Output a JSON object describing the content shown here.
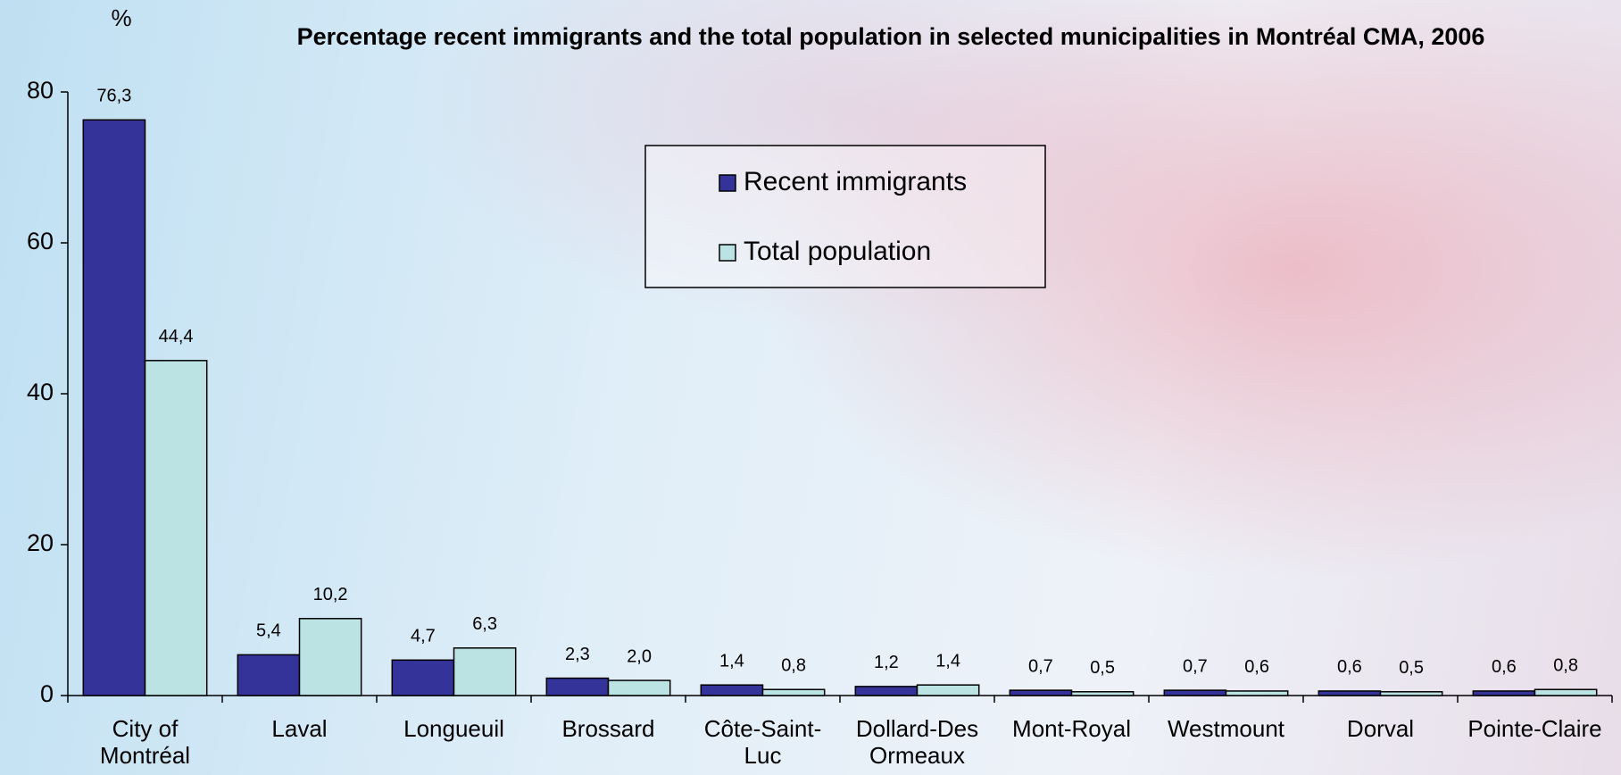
{
  "chart_data": {
    "type": "grouped-bar",
    "title": "Percentage recent immigrants and the total population in selected municipalities in Montréal CMA, 2006",
    "y_label": "%",
    "categories": [
      "City of Montréal",
      "Laval",
      "Longueuil",
      "Brossard",
      "Côte-Saint-Luc",
      "Dollard-Des Ormeaux",
      "Mont-Royal",
      "Westmount",
      "Dorval",
      "Pointe-Claire"
    ],
    "series": [
      {
        "name": "Recent immigrants",
        "color": "#333399",
        "values": [
          76.3,
          5.4,
          4.7,
          2.3,
          1.4,
          1.2,
          0.7,
          0.7,
          0.6,
          0.6
        ],
        "value_labels": [
          "76,3",
          "5,4",
          "4,7",
          "2,3",
          "1,4",
          "1,2",
          "0,7",
          "0,7",
          "0,6",
          "0,6"
        ]
      },
      {
        "name": "Total population",
        "color": "#bce3e3",
        "values": [
          44.4,
          10.2,
          6.3,
          2.0,
          0.8,
          1.4,
          0.5,
          0.6,
          0.5,
          0.8
        ],
        "value_labels": [
          "44,4",
          "10,2",
          "6,3",
          "2,0",
          "0,8",
          "1,4",
          "0,5",
          "0,6",
          "0,5",
          "0,8"
        ]
      }
    ],
    "ylim": [
      0,
      80
    ],
    "yticks": [
      0,
      20,
      40,
      60,
      80
    ],
    "grid": false,
    "legend": "top-center"
  }
}
